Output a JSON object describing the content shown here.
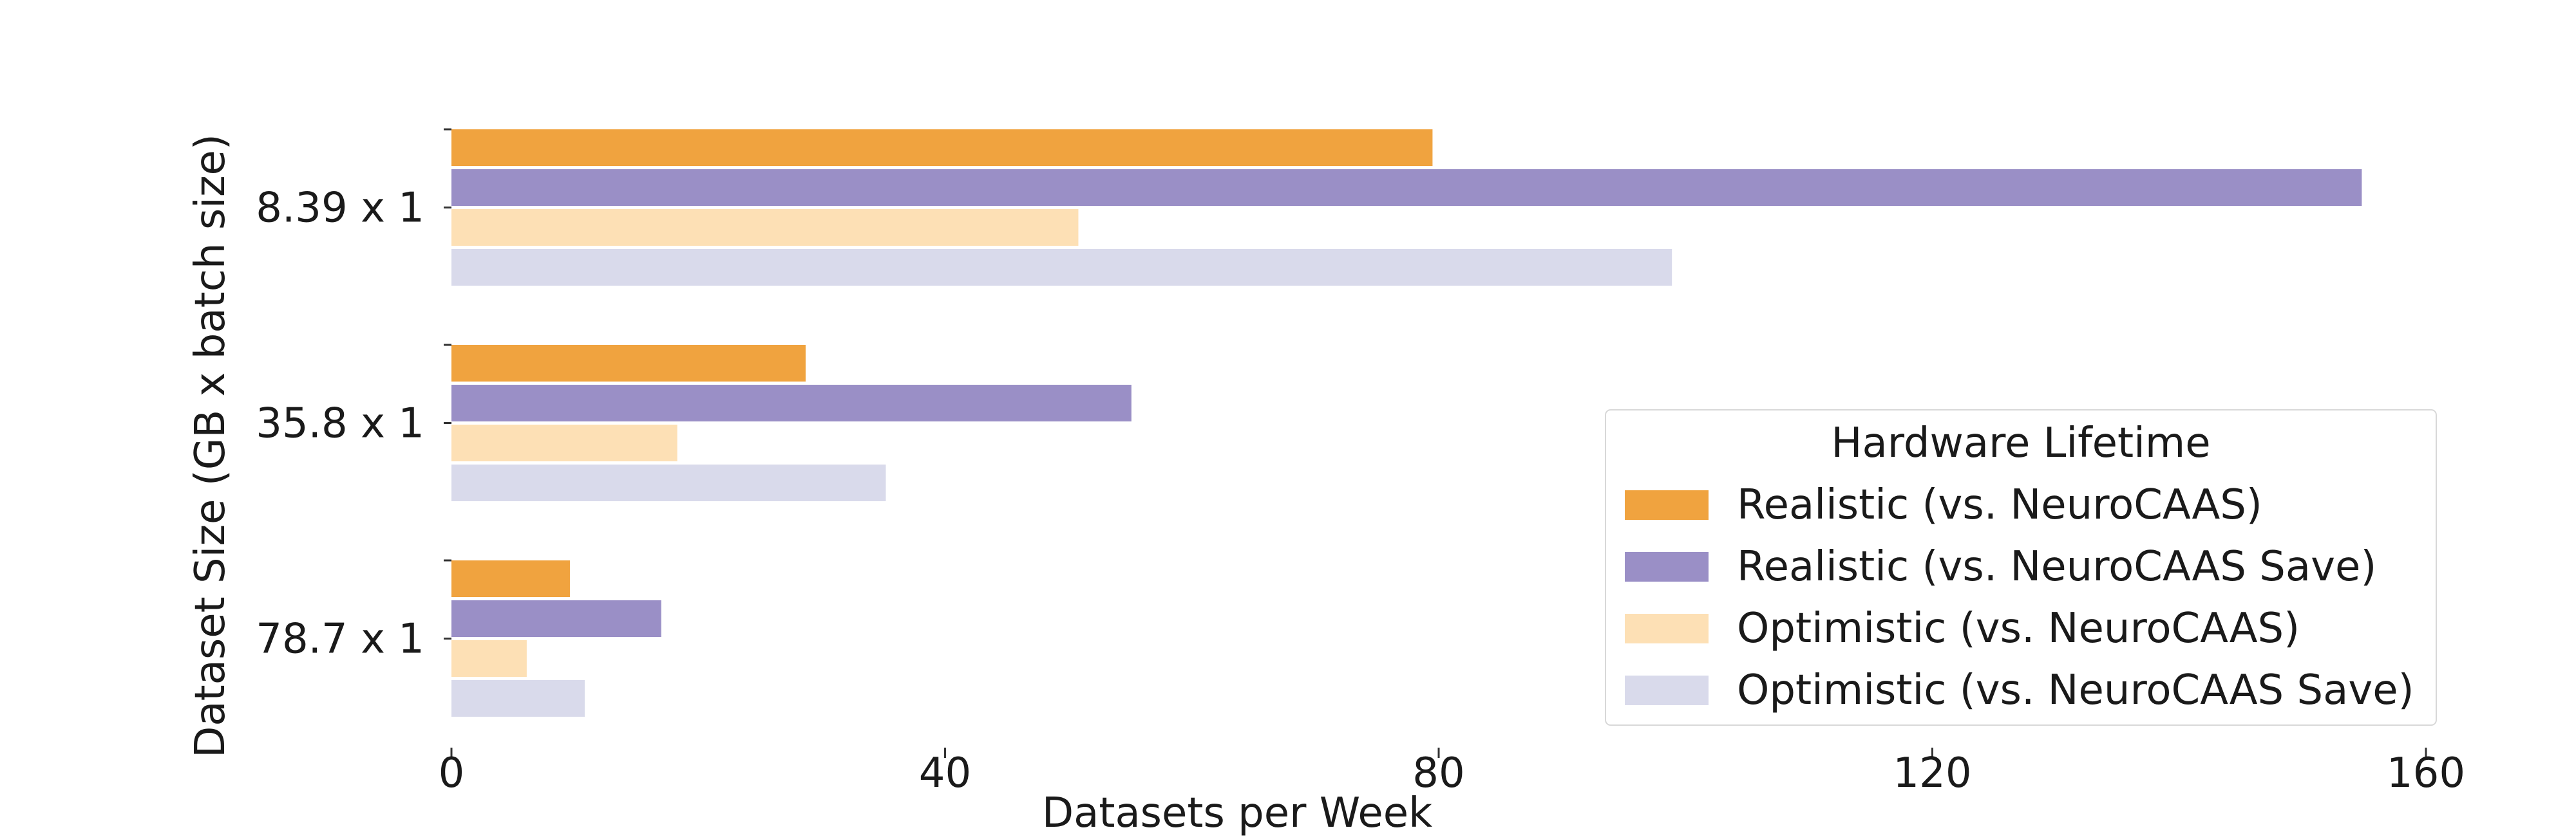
{
  "chart_data": {
    "type": "bar",
    "orientation": "horizontal",
    "title": "",
    "xlabel": "Datasets per Week",
    "ylabel": "Dataset Size (GB x batch size)",
    "xlim": [
      0,
      160
    ],
    "xticks": [
      0,
      40,
      80,
      120,
      160
    ],
    "categories": [
      "8.39 x 1",
      "35.8 x 1",
      "78.7 x 1"
    ],
    "series": [
      {
        "name": "Realistic (vs. NeuroCAAS)",
        "color": "#f0a33f",
        "values": [
          79.5,
          28.7,
          9.6
        ]
      },
      {
        "name": "Realistic (vs. NeuroCAAS Save)",
        "color": "#9a8fc6",
        "values": [
          154.8,
          55.1,
          17
        ]
      },
      {
        "name": "Optimistic (vs. NeuroCAAS)",
        "color": "#fde0b5",
        "values": [
          50.8,
          18.3,
          6.1
        ]
      },
      {
        "name": "Optimistic (vs. NeuroCAAS Save)",
        "color": "#d9daeb",
        "values": [
          98.9,
          35.2,
          10.8
        ]
      }
    ],
    "legend": {
      "title": "Hardware Lifetime",
      "placement": "lower-right"
    },
    "grid": false
  }
}
